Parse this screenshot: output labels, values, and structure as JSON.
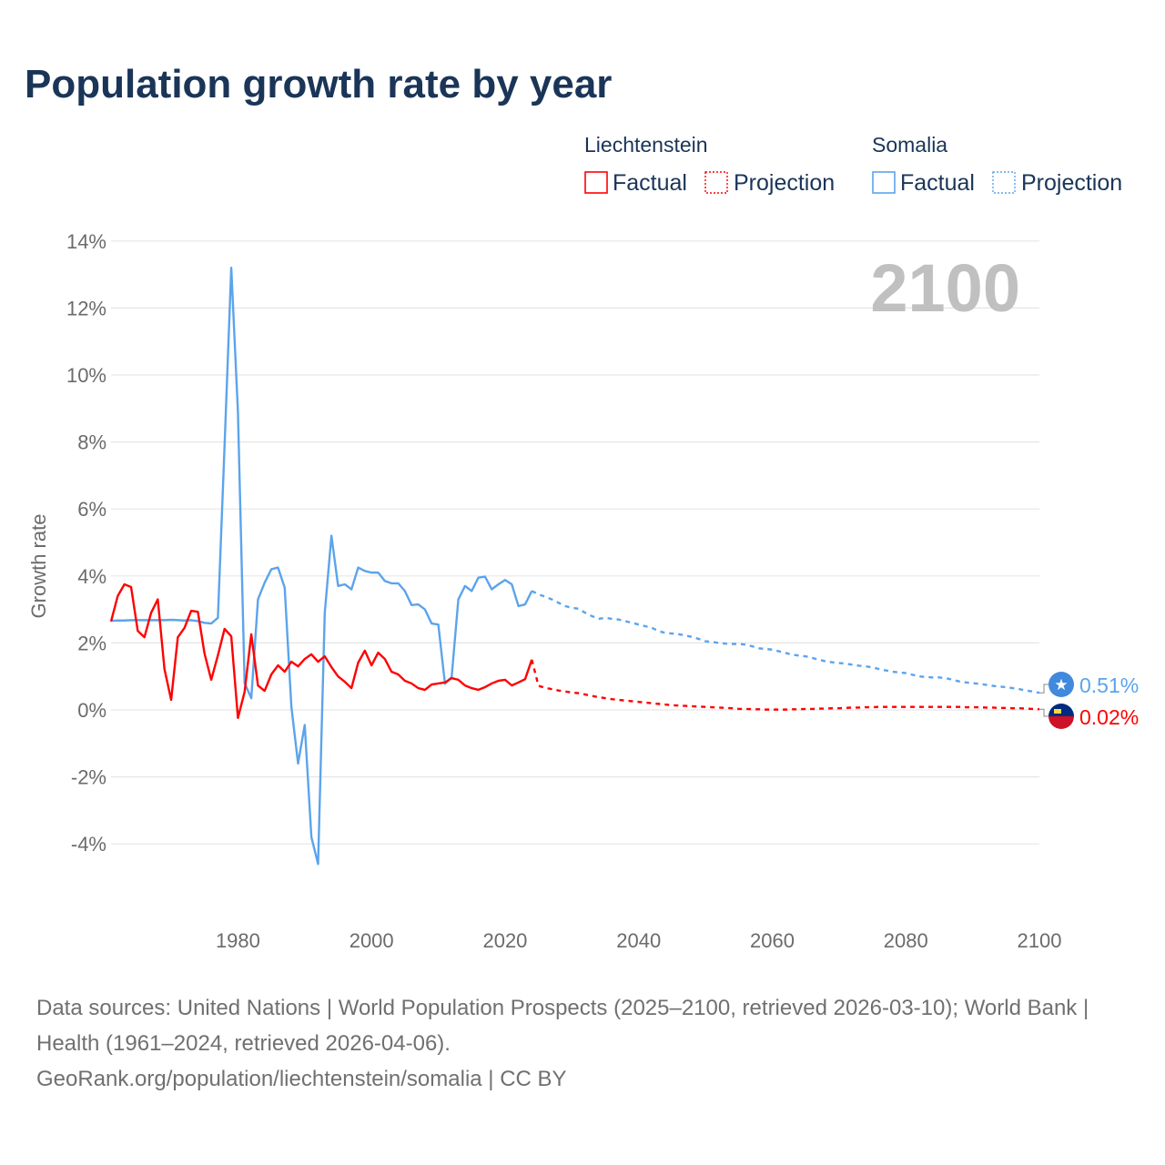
{
  "title": "Population growth rate by year",
  "current_year_label": "2100",
  "legend": {
    "groups": [
      {
        "name": "Liechtenstein",
        "color": "#ff0000",
        "factual_label": "Factual",
        "projection_label": "Projection"
      },
      {
        "name": "Somalia",
        "color": "#5ba4ec",
        "factual_label": "Factual",
        "projection_label": "Projection"
      }
    ]
  },
  "footer": {
    "sources": "Data sources: United Nations | World Population Prospects (2025–2100, retrieved 2026-03-10); World Bank | Health (1961–2024, retrieved 2026-04-06).",
    "link": "GeoRank.org/population/liechtenstein/somalia | CC BY"
  },
  "chart_data": {
    "type": "line",
    "title": "Population growth rate by year",
    "ylabel": "Growth rate",
    "xlabel": "",
    "xlim": [
      1961,
      2100
    ],
    "ylim": [
      -5.5,
      14
    ],
    "yticks": [
      -4,
      -2,
      0,
      2,
      4,
      6,
      8,
      10,
      12,
      14
    ],
    "ytick_labels": [
      "-4%",
      "-2%",
      "0%",
      "2%",
      "4%",
      "6%",
      "8%",
      "10%",
      "12%",
      "14%"
    ],
    "xticks": [
      1980,
      2000,
      2020,
      2040,
      2060,
      2080,
      2100
    ],
    "xtick_labels": [
      "1980",
      "2000",
      "2020",
      "2040",
      "2060",
      "2080",
      "2100"
    ],
    "grid": true,
    "legend_position": "top-right",
    "series": [
      {
        "name": "Liechtenstein",
        "color": "#ff0000",
        "end_label": "0.02%",
        "factual_start": 1961,
        "factual": [
          2.64,
          3.4,
          3.75,
          3.67,
          2.36,
          2.17,
          2.9,
          3.3,
          1.22,
          0.3,
          2.17,
          2.45,
          2.96,
          2.93,
          1.68,
          0.9,
          1.63,
          2.42,
          2.2,
          -0.24,
          0.54,
          2.26,
          0.73,
          0.57,
          1.06,
          1.33,
          1.14,
          1.44,
          1.3,
          1.52,
          1.66,
          1.44,
          1.6,
          1.28,
          1.0,
          0.84,
          0.65,
          1.41,
          1.77,
          1.33,
          1.71,
          1.52,
          1.14,
          1.06,
          0.87,
          0.79,
          0.65,
          0.6,
          0.76,
          0.79,
          0.82,
          0.95,
          0.9,
          0.73,
          0.65,
          0.6,
          0.68,
          0.79,
          0.87,
          0.9,
          0.73,
          0.82,
          0.92,
          1.5
        ],
        "projection_start": 2025,
        "projection": [
          0.72,
          0.66,
          0.62,
          0.58,
          0.55,
          0.52,
          0.5,
          0.46,
          0.42,
          0.38,
          0.35,
          0.32,
          0.3,
          0.28,
          0.26,
          0.24,
          0.22,
          0.2,
          0.18,
          0.16,
          0.14,
          0.13,
          0.12,
          0.11,
          0.1,
          0.09,
          0.08,
          0.07,
          0.06,
          0.05,
          0.03,
          0.03,
          0.02,
          0.02,
          0.01,
          0.01,
          0.01,
          0.01,
          0.02,
          0.02,
          0.03,
          0.03,
          0.04,
          0.04,
          0.05,
          0.05,
          0.06,
          0.07,
          0.07,
          0.08,
          0.08,
          0.09,
          0.09,
          0.09,
          0.09,
          0.09,
          0.09,
          0.09,
          0.09,
          0.09,
          0.09,
          0.09,
          0.09,
          0.09,
          0.08,
          0.08,
          0.08,
          0.07,
          0.07,
          0.06,
          0.06,
          0.05,
          0.05,
          0.04,
          0.03,
          0.02
        ]
      },
      {
        "name": "Somalia",
        "color": "#5ba4ec",
        "end_label": "0.51%",
        "factual_start": 1961,
        "factual": [
          2.66,
          2.67,
          2.67,
          2.68,
          2.68,
          2.68,
          2.68,
          2.68,
          2.68,
          2.69,
          2.68,
          2.67,
          2.68,
          2.65,
          2.6,
          2.58,
          2.75,
          7.9,
          13.2,
          8.9,
          0.8,
          0.35,
          3.3,
          3.8,
          4.2,
          4.25,
          3.65,
          0.1,
          -1.6,
          -0.45,
          -3.8,
          -4.6,
          2.9,
          5.2,
          3.7,
          3.75,
          3.6,
          4.25,
          4.15,
          4.1,
          4.1,
          3.85,
          3.78,
          3.78,
          3.55,
          3.13,
          3.15,
          3.0,
          2.58,
          2.55,
          0.78,
          0.98,
          3.3,
          3.7,
          3.55,
          3.95,
          3.98,
          3.6,
          3.75,
          3.88,
          3.75,
          3.1,
          3.15,
          3.55
        ],
        "projection_start": 2025,
        "projection": [
          3.45,
          3.38,
          3.3,
          3.2,
          3.1,
          3.05,
          3.02,
          2.9,
          2.8,
          2.72,
          2.75,
          2.72,
          2.7,
          2.65,
          2.6,
          2.55,
          2.5,
          2.45,
          2.35,
          2.3,
          2.28,
          2.26,
          2.22,
          2.18,
          2.12,
          2.05,
          2.03,
          2.0,
          1.98,
          1.97,
          1.97,
          1.95,
          1.9,
          1.84,
          1.82,
          1.8,
          1.75,
          1.7,
          1.65,
          1.62,
          1.6,
          1.55,
          1.5,
          1.45,
          1.42,
          1.4,
          1.38,
          1.35,
          1.32,
          1.3,
          1.27,
          1.22,
          1.18,
          1.14,
          1.12,
          1.1,
          1.05,
          1.0,
          0.98,
          0.97,
          0.97,
          0.95,
          0.9,
          0.85,
          0.82,
          0.8,
          0.78,
          0.75,
          0.72,
          0.7,
          0.68,
          0.65,
          0.62,
          0.58,
          0.55,
          0.51
        ]
      }
    ]
  }
}
